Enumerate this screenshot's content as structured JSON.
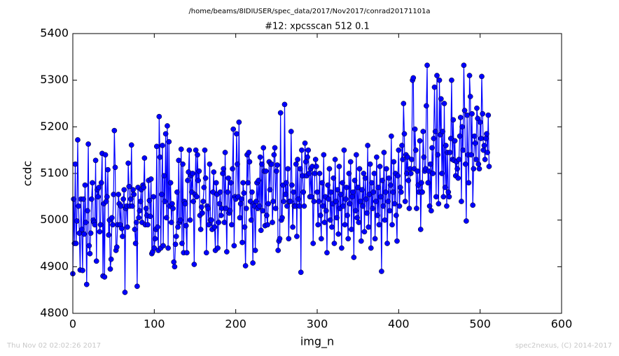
{
  "chart_data": {
    "type": "line",
    "suptitle": "/home/beams/8IDIUSER/spec_data/2017/Nov2017/conrad20171101a",
    "title": "#12: xpcsscan 512 0.1",
    "xlabel": "img_n",
    "ylabel": "ccdc",
    "xlim": [
      0,
      600
    ],
    "xticks": [
      0,
      100,
      200,
      300,
      400,
      500,
      600
    ],
    "ylim": [
      4800,
      5400
    ],
    "yticks": [
      4800,
      4900,
      5000,
      5100,
      5200,
      5300,
      5400
    ],
    "color": "#0000ff",
    "marker": "o",
    "x": [
      0,
      1,
      2,
      3,
      4,
      5,
      6,
      7,
      8,
      9,
      10,
      11,
      12,
      13,
      14,
      15,
      16,
      17,
      18,
      19,
      20,
      21,
      22,
      23,
      24,
      25,
      26,
      27,
      28,
      29,
      30,
      31,
      32,
      33,
      34,
      35,
      36,
      37,
      38,
      39,
      40,
      41,
      42,
      43,
      44,
      45,
      46,
      47,
      48,
      49,
      50,
      51,
      52,
      53,
      54,
      55,
      56,
      57,
      58,
      59,
      60,
      61,
      62,
      63,
      64,
      65,
      66,
      67,
      68,
      69,
      70,
      71,
      72,
      73,
      74,
      75,
      76,
      77,
      78,
      79,
      80,
      81,
      82,
      83,
      84,
      85,
      86,
      87,
      88,
      89,
      90,
      91,
      92,
      93,
      94,
      95,
      96,
      97,
      98,
      99,
      100,
      101,
      102,
      103,
      104,
      105,
      106,
      107,
      108,
      109,
      110,
      111,
      112,
      113,
      114,
      115,
      116,
      117,
      118,
      119,
      120,
      121,
      122,
      123,
      124,
      125,
      126,
      127,
      128,
      129,
      130,
      131,
      132,
      133,
      134,
      135,
      136,
      137,
      138,
      139,
      140,
      141,
      142,
      143,
      144,
      145,
      146,
      147,
      148,
      149,
      150,
      151,
      152,
      153,
      154,
      155,
      156,
      157,
      158,
      159,
      160,
      161,
      162,
      163,
      164,
      165,
      166,
      167,
      168,
      169,
      170,
      171,
      172,
      173,
      174,
      175,
      176,
      177,
      178,
      179,
      180,
      181,
      182,
      183,
      184,
      185,
      186,
      187,
      188,
      189,
      190,
      191,
      192,
      193,
      194,
      195,
      196,
      197,
      198,
      199,
      200,
      201,
      202,
      203,
      204,
      205,
      206,
      207,
      208,
      209,
      210,
      211,
      212,
      213,
      214,
      215,
      216,
      217,
      218,
      219,
      220,
      221,
      222,
      223,
      224,
      225,
      226,
      227,
      228,
      229,
      230,
      231,
      232,
      233,
      234,
      235,
      236,
      237,
      238,
      239,
      240,
      241,
      242,
      243,
      244,
      245,
      246,
      247,
      248,
      249,
      250,
      251,
      252,
      253,
      254,
      255,
      256,
      257,
      258,
      259,
      260,
      261,
      262,
      263,
      264,
      265,
      266,
      267,
      268,
      269,
      270,
      271,
      272,
      273,
      274,
      275,
      276,
      277,
      278,
      279,
      280,
      281,
      282,
      283,
      284,
      285,
      286,
      287,
      288,
      289,
      290,
      291,
      292,
      293,
      294,
      295,
      296,
      297,
      298,
      299,
      300,
      301,
      302,
      303,
      304,
      305,
      306,
      307,
      308,
      309,
      310,
      311,
      312,
      313,
      314,
      315,
      316,
      317,
      318,
      319,
      320,
      321,
      322,
      323,
      324,
      325,
      326,
      327,
      328,
      329,
      330,
      331,
      332,
      333,
      334,
      335,
      336,
      337,
      338,
      339,
      340,
      341,
      342,
      343,
      344,
      345,
      346,
      347,
      348,
      349,
      350,
      351,
      352,
      353,
      354,
      355,
      356,
      357,
      358,
      359,
      360,
      361,
      362,
      363,
      364,
      365,
      366,
      367,
      368,
      369,
      370,
      371,
      372,
      373,
      374,
      375,
      376,
      377,
      378,
      379,
      380,
      381,
      382,
      383,
      384,
      385,
      386,
      387,
      388,
      389,
      390,
      391,
      392,
      393,
      394,
      395,
      396,
      397,
      398,
      399,
      400,
      401,
      402,
      403,
      404,
      405,
      406,
      407,
      408,
      409,
      410,
      411,
      412,
      413,
      414,
      415,
      416,
      417,
      418,
      419,
      420,
      421,
      422,
      423,
      424,
      425,
      426,
      427,
      428,
      429,
      430,
      431,
      432,
      433,
      434,
      435,
      436,
      437,
      438,
      439,
      440,
      441,
      442,
      443,
      444,
      445,
      446,
      447,
      448,
      449,
      450,
      451,
      452,
      453,
      454,
      455,
      456,
      457,
      458,
      459,
      460,
      461,
      462,
      463,
      464,
      465,
      466,
      467,
      468,
      469,
      470,
      471,
      472,
      473,
      474,
      475,
      476,
      477,
      478,
      479,
      480,
      481,
      482,
      483,
      484,
      485,
      486,
      487,
      488,
      489,
      490,
      491,
      492,
      493,
      494,
      495,
      496,
      497,
      498,
      499,
      500,
      501,
      502,
      503,
      504,
      505,
      506,
      507,
      508,
      509,
      510,
      511
    ],
    "values": [
      4885,
      5045,
      4950,
      5120,
      4950,
      4998,
      5172,
      5030,
      4972,
      4893,
      5045,
      4980,
      4892,
      5045,
      4970,
      5075,
      4995,
      4862,
      5020,
      5163,
      4945,
      4928,
      4972,
      5045,
      5080,
      5000,
      4995,
      4990,
      5128,
      4912,
      5065,
      5050,
      5070,
      4975,
      4990,
      5080,
      5143,
      4880,
      5035,
      4878,
      5140,
      5040,
      5050,
      5108,
      4968,
      5000,
      4895,
      4916,
      5005,
      4990,
      5055,
      5192,
      5113,
      4935,
      4942,
      4990,
      5055,
      5035,
      4990,
      5030,
      4982,
      4965,
      5045,
      5065,
      4845,
      5025,
      5030,
      4985,
      5122,
      5072,
      5030,
      5045,
      5161,
      5030,
      5065,
      5055,
      4980,
      4950,
      4995,
      4858,
      5070,
      5005,
      5020,
      5040,
      5065,
      4995,
      5075,
      5070,
      5133,
      4990,
      5025,
      5010,
      4990,
      5085,
      5042,
      5008,
      5088,
      4928,
      4932,
      5050,
      4940,
      4960,
      4980,
      5158,
      4985,
      4935,
      5222,
      5135,
      4940,
      5055,
      5160,
      4945,
      5095,
      5040,
      5185,
      5005,
      5202,
      4940,
      5168,
      5030,
      5080,
      4995,
      5035,
      5025,
      4910,
      4900,
      4948,
      4965,
      5060,
      4985,
      5128,
      4995,
      5000,
      5152,
      4950,
      5120,
      4930,
      5040,
      5035,
      4988,
      4930,
      5085,
      5103,
      5150,
      5000,
      5095,
      5060,
      5100,
      5040,
      4905,
      5055,
      5150,
      5050,
      5140,
      5085,
      5105,
      5010,
      4980,
      5028,
      5015,
      5040,
      5070,
      5150,
      5090,
      4930,
      5030,
      5025,
      4990,
      5120,
      5000,
      5000,
      4980,
      5060,
      5103,
      4985,
      4935,
      5080,
      5055,
      4940,
      4995,
      5035,
      5060,
      5010,
      5025,
      5100,
      5110,
      4995,
      5145,
      5025,
      4932,
      5060,
      5090,
      5015,
      5020,
      5080,
      4990,
      5110,
      5195,
      4945,
      5050,
      5045,
      5185,
      5120,
      5050,
      5210,
      5005,
      5035,
      5045,
      4952,
      5080,
      5058,
      4985,
      4902,
      5025,
      5140,
      5080,
      5145,
      5125,
      5040,
      5000,
      5060,
      4908,
      5035,
      5030,
      4935,
      5040,
      5080,
      5025,
      5085,
      5030,
      5135,
      4978,
      5120,
      5020,
      5155,
      5105,
      4988,
      5105,
      5010,
      4990,
      5035,
      5125,
      5065,
      5120,
      5120,
      4995,
      5040,
      5140,
      5155,
      5025,
      5105,
      5118,
      4935,
      4955,
      4960,
      5230,
      5000,
      5005,
      5075,
      5040,
      5248,
      5055,
      5080,
      5030,
      5110,
      4960,
      5040,
      5040,
      5190,
      5075,
      4985,
      5060,
      5030,
      5030,
      5120,
      4965,
      5130,
      5045,
      5030,
      5110,
      4888,
      5150,
      5095,
      5060,
      5030,
      5165,
      5125,
      5095,
      5135,
      5150,
      5100,
      5050,
      5110,
      5050,
      5115,
      4950,
      5040,
      5100,
      5130,
      5115,
      5060,
      4990,
      5040,
      5100,
      5010,
      4960,
      5080,
      5030,
      5140,
      4995,
      5050,
      5020,
      4930,
      5075,
      5045,
      5110,
      5000,
      5060,
      4985,
      5035,
      5090,
      4950,
      5130,
      5040,
      5005,
      5065,
      4970,
      5115,
      5025,
      5055,
      4940,
      5080,
      5030,
      5150,
      4990,
      5045,
      5070,
      5010,
      4960,
      5100,
      5035,
      5125,
      4980,
      5050,
      5060,
      4920,
      5085,
      5020,
      5140,
      5005,
      5070,
      4995,
      5110,
      5040,
      4955,
      5065,
      5030,
      5100,
      4975,
      5090,
      5045,
      5015,
      5160,
      4985,
      5055,
      5120,
      4940,
      5080,
      5025,
      5060,
      5100,
      4960,
      5040,
      5135,
      5010,
      5070,
      4990,
      5115,
      5050,
      4890,
      5085,
      5030,
      5145,
      5000,
      5060,
      5110,
      4950,
      5040,
      5090,
      5020,
      5075,
      5180,
      4990,
      5060,
      5125,
      5035,
      5100,
      5010,
      4955,
      5095,
      5150,
      5030,
      5070,
      5060,
      5160,
      5130,
      5250,
      5185,
      5040,
      5140,
      5100,
      5135,
      5085,
      5025,
      5110,
      5100,
      5130,
      5300,
      5305,
      5110,
      5195,
      5150,
      5025,
      5105,
      5075,
      5060,
      5170,
      4980,
      5080,
      5060,
      5190,
      5135,
      5105,
      5110,
      5245,
      5332,
      5080,
      5105,
      5030,
      5120,
      5020,
      5155,
      5100,
      5175,
      5285,
      5190,
      5050,
      5310,
      5140,
      5035,
      5300,
      5183,
      5260,
      5100,
      5190,
      5050,
      5250,
      5070,
      5160,
      5030,
      5145,
      5060,
      5050,
      5145,
      5175,
      5300,
      5130,
      5215,
      5128,
      5170,
      5095,
      5125,
      5110,
      5090,
      5130,
      5180,
      5220,
      5040,
      5200,
      5150,
      5332,
      5235,
      5120,
      4998,
      5225,
      5140,
      5080,
      5310,
      5265,
      5140,
      5228,
      5032,
      5110,
      5180,
      5165,
      5130,
      5240,
      5218,
      5120,
      5110,
      5210,
      5175,
      5308,
      5228,
      5150,
      5160,
      5130,
      5175,
      5185,
      5145,
      5225,
      5115
    ]
  },
  "footer": {
    "left": "Thu Nov 02 02:02:26 2017",
    "right": "spec2nexus, (C) 2014-2017"
  }
}
